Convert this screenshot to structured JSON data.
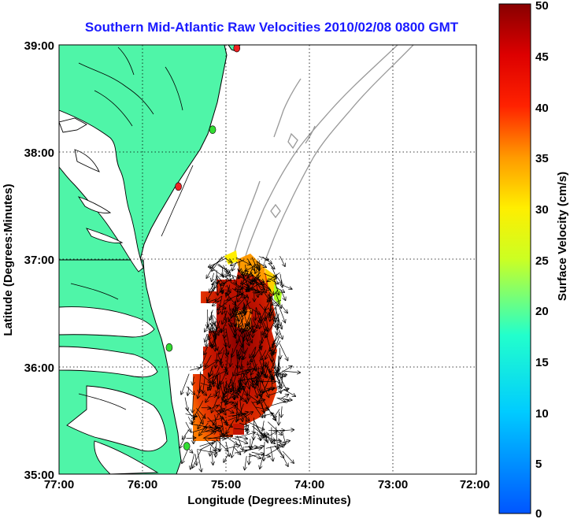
{
  "title": "Southern Mid-Atlantic Raw Velocities 2010/02/08 0800 GMT",
  "map": {
    "xlabel": "Longitude (Degrees:Minutes)",
    "ylabel": "Latitude (Degrees:Minutes)",
    "lon_range": [
      -77,
      -72
    ],
    "lat_range": [
      35,
      39
    ],
    "x_ticks": [
      "77:00",
      "76:00",
      "75:00",
      "74:00",
      "73:00",
      "72:00"
    ],
    "y_ticks": [
      "39:00",
      "38:00",
      "37:00",
      "36:00",
      "35:00"
    ],
    "grid": "dotted",
    "colors": {
      "land": "#4ff5a8",
      "coastline": "#000000",
      "bathymetry": "#999999",
      "vectors": "#000000",
      "radar_site": "#33dd33",
      "radar_site_alt": "#ee2222",
      "title": "#1a1aff"
    }
  },
  "colorbar": {
    "label": "Surface Velocity (cm/s)",
    "min": 0,
    "max": 50,
    "ticks": [
      "50",
      "45",
      "40",
      "35",
      "30",
      "25",
      "20",
      "15",
      "10",
      "5",
      "0"
    ],
    "colormap": "jet"
  },
  "radar_sites": [
    {
      "lon": -74.87,
      "lat": 38.97,
      "status": "red"
    },
    {
      "lon": -75.16,
      "lat": 38.21,
      "status": "green"
    },
    {
      "lon": -75.57,
      "lat": 37.68,
      "status": "red"
    },
    {
      "lon": -75.68,
      "lat": 36.18,
      "status": "green"
    },
    {
      "lon": -75.47,
      "lat": 35.26,
      "status": "green"
    }
  ]
}
